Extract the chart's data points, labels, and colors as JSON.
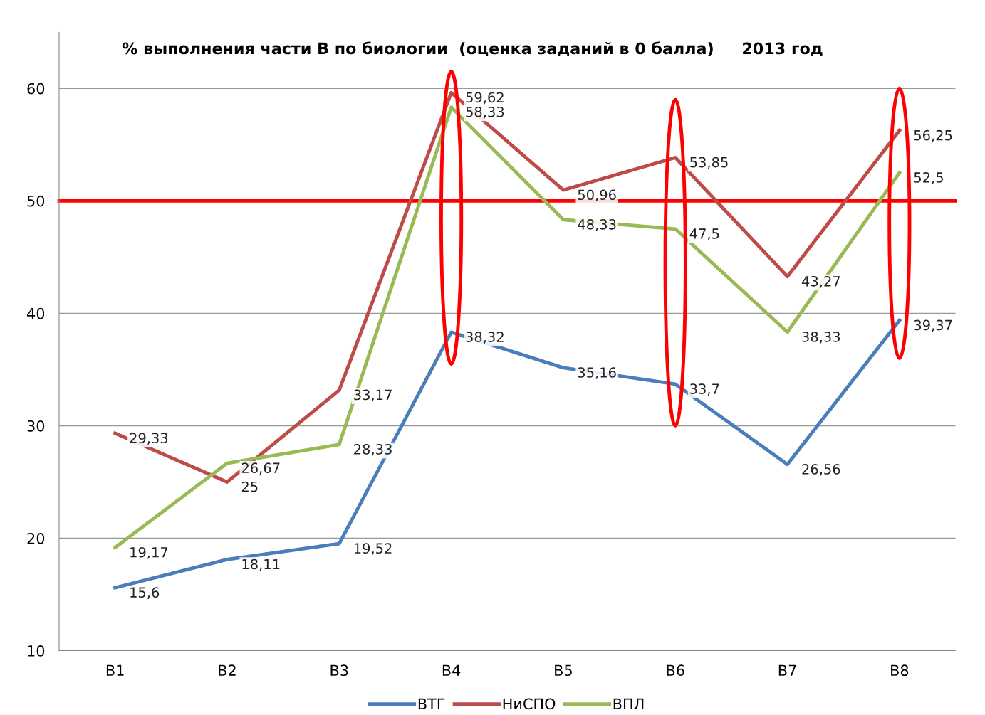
{
  "chart_data": {
    "type": "line",
    "title": "% выполнения части В по биологии  (оценка заданий в 0 балла)     2013 год",
    "categories": [
      "В1",
      "В2",
      "В3",
      "В4",
      "В5",
      "В6",
      "В7",
      "В8"
    ],
    "series": [
      {
        "name": "ВТГ",
        "color": "#4a7ebb",
        "values": [
          15.6,
          18.11,
          19.52,
          38.32,
          35.16,
          33.7,
          26.56,
          39.37
        ],
        "value_labels": [
          "15,6",
          "18,11",
          "19,52",
          "38,32",
          "35,16",
          "33,7",
          "26,56",
          "39,37"
        ]
      },
      {
        "name": "НиСПО",
        "color": "#be4b48",
        "values": [
          29.33,
          25,
          33.17,
          59.62,
          50.96,
          53.85,
          43.27,
          56.25
        ],
        "value_labels": [
          "29,33",
          "25",
          "33,17",
          "59,62",
          "50,96",
          "53,85",
          "43,27",
          "56,25"
        ]
      },
      {
        "name": "ВПЛ",
        "color": "#98b954",
        "values": [
          19.17,
          26.67,
          28.33,
          58.33,
          48.33,
          47.5,
          38.33,
          52.5
        ],
        "value_labels": [
          "19,17",
          "26,67",
          "28,33",
          "58,33",
          "48,33",
          "47,5",
          "38,33",
          "52,5"
        ]
      }
    ],
    "ylim": [
      10,
      65
    ],
    "yticks": [
      10,
      20,
      30,
      40,
      50,
      60
    ],
    "grid": "y",
    "legend": "bottom",
    "marker": "none",
    "line_style": "solid",
    "ref_lines": [
      {
        "axis": "y",
        "value": 50,
        "color": "#ff0000",
        "line_style": "solid"
      }
    ]
  }
}
